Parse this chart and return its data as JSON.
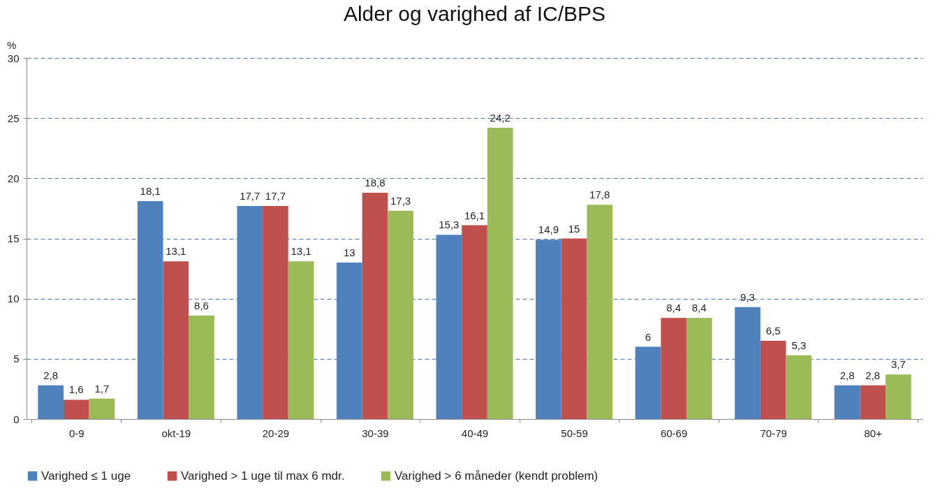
{
  "chart_data": {
    "type": "bar",
    "title": "Alder og varighed af IC/BPS",
    "ylabel": "%",
    "categories": [
      "0-9",
      "okt-19",
      "20-29",
      "30-39",
      "40-49",
      "50-59",
      "60-69",
      "70-79",
      "80+"
    ],
    "series": [
      {
        "name": "Varighed ≤ 1 uge",
        "color": "#4f81bd",
        "values": [
          2.8,
          18.1,
          17.7,
          13,
          15.3,
          14.9,
          6,
          9.3,
          2.8
        ],
        "value_labels": [
          "2,8",
          "18,1",
          "17,7",
          "13",
          "15,3",
          "14,9",
          "6",
          "9,3",
          "2,8"
        ]
      },
      {
        "name": "Varighed > 1 uge til max 6 mdr.",
        "color": "#c0504d",
        "values": [
          1.6,
          13.1,
          17.7,
          18.8,
          16.1,
          15,
          8.4,
          6.5,
          2.8
        ],
        "value_labels": [
          "1,6",
          "13,1",
          "17,7",
          "18,8",
          "16,1",
          "15",
          "8,4",
          "6,5",
          "2,8"
        ]
      },
      {
        "name": "Varighed > 6 måneder (kendt problem)",
        "color": "#9bbb59",
        "values": [
          1.7,
          8.6,
          13.1,
          17.3,
          24.2,
          17.8,
          8.4,
          5.3,
          3.7
        ],
        "value_labels": [
          "1,7",
          "8,6",
          "13,1",
          "17,3",
          "24,2",
          "17,8",
          "8,4",
          "5,3",
          "3,7"
        ]
      }
    ],
    "ylim": [
      0,
      30
    ],
    "yticks": [
      0,
      5,
      10,
      15,
      20,
      25,
      30
    ],
    "grid": "y",
    "legend": "bottom"
  }
}
